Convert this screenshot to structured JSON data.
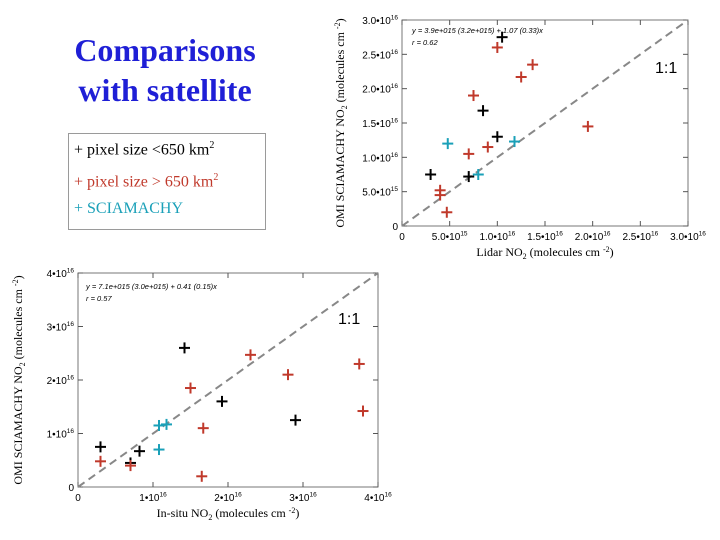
{
  "slide": {
    "title_line1": "Comparisons",
    "title_line2": "with satellite"
  },
  "legend": {
    "black": "+  pixel size <650 km",
    "red": "+ pixel size > 650 km",
    "cyan": "+ SCIAMACHY",
    "sup": "2"
  },
  "colors": {
    "black": "#000000",
    "red": "#c0392b",
    "cyan": "#1aa0b8",
    "title": "#1f1fd6"
  },
  "chart_data": [
    {
      "type": "scatter",
      "xlabel": "Lidar NO",
      "xlabel_sub": "2",
      "xlabel_units": "(molecules cm",
      "ylabel": "OMI SCIAMACHY NO",
      "ylabel_sub": "2",
      "ylabel_units": "(molecules cm",
      "xlim": [
        0,
        3e+16
      ],
      "ylim": [
        0,
        3e+16
      ],
      "x_ticks": [
        "0",
        "5.0•10",
        "1.0•10",
        "1.5•10",
        "2.0•10",
        "2.5•10",
        "3.0•10"
      ],
      "y_ticks": [
        "0",
        "5.0•10",
        "1.0•10",
        "1.5•10",
        "2.0•10",
        "2.5•10",
        "3.0•10"
      ],
      "tick_exps": [
        "",
        "15",
        "16",
        "16",
        "16",
        "16",
        "16"
      ],
      "stats": [
        "y = 3.9e+015 (3.2e+015) + 1.07 (0.33)x",
        "r = 0.62"
      ],
      "one_to_one_label": "1:1",
      "series": [
        {
          "color": "black",
          "points": [
            [
              3000000000000000.0,
              7500000000000000.0
            ],
            [
              7000000000000000.0,
              7200000000000000.0
            ],
            [
              1e+16,
              1.3e+16
            ],
            [
              8500000000000000.0,
              1.68e+16
            ],
            [
              1.05e+16,
              2.75e+16
            ]
          ]
        },
        {
          "color": "red",
          "points": [
            [
              4000000000000000.0,
              5200000000000000.0
            ],
            [
              4000000000000000.0,
              4500000000000000.0
            ],
            [
              4700000000000000.0,
              2000000000000000.0
            ],
            [
              7000000000000000.0,
              1.05e+16
            ],
            [
              9000000000000000.0,
              1.15e+16
            ],
            [
              1e+16,
              2.6e+16
            ],
            [
              7500000000000000.0,
              1.9e+16
            ],
            [
              1.25e+16,
              2.17e+16
            ],
            [
              1.37e+16,
              2.35e+16
            ],
            [
              1.95e+16,
              1.45e+16
            ]
          ]
        },
        {
          "color": "cyan",
          "points": [
            [
              4800000000000000.0,
              1.2e+16
            ],
            [
              8000000000000000.0,
              7500000000000000.0
            ],
            [
              1.18e+16,
              1.23e+16
            ]
          ]
        }
      ]
    },
    {
      "type": "scatter",
      "xlabel": "In-situ NO",
      "xlabel_sub": "2",
      "xlabel_units": "(molecules cm",
      "ylabel": "OMI SCIAMACHY NO",
      "ylabel_sub": "2",
      "ylabel_units": "(molecules cm",
      "xlim": [
        0,
        4e+16
      ],
      "ylim": [
        0,
        4e+16
      ],
      "x_ticks": [
        "0",
        "1•10",
        "2•10",
        "3•10",
        "4•10"
      ],
      "y_ticks": [
        "0",
        "1•10",
        "2•10",
        "3•10",
        "4•10"
      ],
      "tick_exps": [
        "",
        "16",
        "16",
        "16",
        "16"
      ],
      "stats": [
        "y = 7.1e+015 (3.0e+015) + 0.41 (0.15)x",
        "r = 0.57"
      ],
      "one_to_one_label": "1:1",
      "series": [
        {
          "color": "black",
          "points": [
            [
              3000000000000000.0,
              7500000000000000.0
            ],
            [
              7000000000000000.0,
              4500000000000000.0
            ],
            [
              8200000000000000.0,
              6700000000000000.0
            ],
            [
              1.42e+16,
              2.6e+16
            ],
            [
              1.92e+16,
              1.6e+16
            ],
            [
              2.9e+16,
              1.25e+16
            ]
          ]
        },
        {
          "color": "red",
          "points": [
            [
              3000000000000000.0,
              4800000000000000.0
            ],
            [
              7000000000000000.0,
              4000000000000000.0
            ],
            [
              1.5e+16,
              1.85e+16
            ],
            [
              1.67e+16,
              1.1e+16
            ],
            [
              1.65e+16,
              2000000000000000.0
            ],
            [
              2.3e+16,
              2.47e+16
            ],
            [
              2.8e+16,
              2.1e+16
            ],
            [
              3.75e+16,
              2.3e+16
            ],
            [
              3.8e+16,
              1.42e+16
            ]
          ]
        },
        {
          "color": "cyan",
          "points": [
            [
              1.08e+16,
              1.15e+16
            ],
            [
              1.18e+16,
              1.17e+16
            ],
            [
              1.08e+16,
              7000000000000000.0
            ]
          ]
        }
      ]
    }
  ]
}
